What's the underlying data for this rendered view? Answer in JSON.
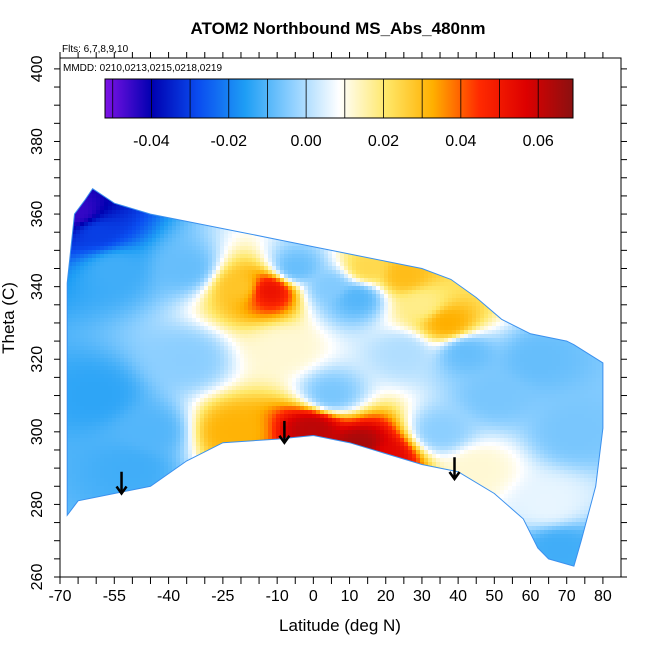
{
  "chart_data": {
    "type": "heatmap",
    "title": "ATOM2 Northbound MS_Abs_480nm",
    "subtitle_flights": "Flts: 6,7,8,9,10",
    "subtitle_dates": "MMDD: 0210,0213,0215,0218,0219",
    "xlabel": "Latitude (deg N)",
    "ylabel": "Theta (C)",
    "xlim": [
      -70,
      85
    ],
    "ylim": [
      260,
      403
    ],
    "x_ticks": [
      -70,
      -55,
      -40,
      -25,
      -10,
      0,
      10,
      20,
      30,
      40,
      50,
      60,
      70,
      80
    ],
    "y_ticks": [
      260,
      280,
      300,
      320,
      340,
      360,
      380,
      400
    ],
    "colorbar": {
      "range": [
        -0.052,
        0.069
      ],
      "ticks": [
        "-0.04",
        "-0.02",
        "0.00",
        "0.02",
        "0.04",
        "0.06"
      ],
      "tick_values": [
        -0.04,
        -0.02,
        0.0,
        0.02,
        0.04,
        0.06
      ],
      "colors": [
        "#7e12e6",
        "#0000b0",
        "#0a4df0",
        "#1e9ef5",
        "#8fd0ff",
        "#ffffff",
        "#ffe86a",
        "#ffb000",
        "#ff2a00",
        "#dd0000",
        "#8b1010"
      ]
    },
    "domain_boundary": {
      "top": [
        [
          -68,
          341
        ],
        [
          -66,
          360
        ],
        [
          -63,
          364
        ],
        [
          -61,
          367
        ],
        [
          -55,
          363
        ],
        [
          -45,
          360
        ],
        [
          -30,
          357
        ],
        [
          -20,
          355
        ],
        [
          -10,
          353
        ],
        [
          0,
          351
        ],
        [
          10,
          349
        ],
        [
          20,
          347
        ],
        [
          30,
          345
        ],
        [
          38,
          342
        ],
        [
          45,
          337
        ],
        [
          52,
          331
        ],
        [
          60,
          327
        ],
        [
          70,
          325
        ],
        [
          72,
          324
        ],
        [
          80,
          319
        ],
        [
          80,
          301
        ]
      ],
      "bottom": [
        [
          -68,
          277
        ],
        [
          -65,
          281
        ],
        [
          -55,
          283
        ],
        [
          -45,
          285
        ],
        [
          -35,
          292
        ],
        [
          -25,
          297
        ],
        [
          -10,
          298
        ],
        [
          0,
          299
        ],
        [
          10,
          297
        ],
        [
          20,
          294
        ],
        [
          30,
          291
        ],
        [
          40,
          289
        ],
        [
          50,
          283
        ],
        [
          58,
          276
        ],
        [
          62,
          268
        ],
        [
          65,
          265
        ],
        [
          72,
          263
        ],
        [
          74,
          270
        ],
        [
          78,
          285
        ],
        [
          80,
          301
        ]
      ]
    },
    "features": [
      {
        "lat": -65,
        "theta": 360,
        "value": -0.045
      },
      {
        "lat": -60,
        "theta": 355,
        "value": -0.03
      },
      {
        "lat": -55,
        "theta": 345,
        "value": -0.012
      },
      {
        "lat": -60,
        "theta": 310,
        "value": -0.014
      },
      {
        "lat": -50,
        "theta": 290,
        "value": -0.012
      },
      {
        "lat": -35,
        "theta": 320,
        "value": -0.004
      },
      {
        "lat": -35,
        "theta": 345,
        "value": -0.008
      },
      {
        "lat": -20,
        "theta": 340,
        "value": 0.028
      },
      {
        "lat": -12,
        "theta": 339,
        "value": 0.052
      },
      {
        "lat": -8,
        "theta": 323,
        "value": 0.012
      },
      {
        "lat": -5,
        "theta": 345,
        "value": -0.008
      },
      {
        "lat": 5,
        "theta": 340,
        "value": -0.005
      },
      {
        "lat": 12,
        "theta": 337,
        "value": -0.01
      },
      {
        "lat": 15,
        "theta": 345,
        "value": 0.024
      },
      {
        "lat": 25,
        "theta": 343,
        "value": 0.03
      },
      {
        "lat": 30,
        "theta": 335,
        "value": 0.018
      },
      {
        "lat": 37,
        "theta": 330,
        "value": 0.033
      },
      {
        "lat": 42,
        "theta": 322,
        "value": -0.008
      },
      {
        "lat": 25,
        "theta": 322,
        "value": 0.0
      },
      {
        "lat": 35,
        "theta": 300,
        "value": -0.004
      },
      {
        "lat": 50,
        "theta": 310,
        "value": -0.006
      },
      {
        "lat": 62,
        "theta": 320,
        "value": -0.008
      },
      {
        "lat": 72,
        "theta": 300,
        "value": -0.006
      },
      {
        "lat": 65,
        "theta": 280,
        "value": 0.006
      },
      {
        "lat": 68,
        "theta": 268,
        "value": -0.012
      },
      {
        "lat": 45,
        "theta": 290,
        "value": 0.012
      },
      {
        "lat": -22,
        "theta": 300,
        "value": 0.032
      },
      {
        "lat": 0,
        "theta": 301,
        "value": 0.062
      },
      {
        "lat": 13,
        "theta": 296,
        "value": 0.065
      },
      {
        "lat": 20,
        "theta": 293,
        "value": 0.055
      },
      {
        "lat": 5,
        "theta": 310,
        "value": -0.006
      },
      {
        "lat": -45,
        "theta": 300,
        "value": -0.01
      }
    ],
    "arrows": [
      {
        "lat": -53,
        "theta_top": 289,
        "theta_tip": 283
      },
      {
        "lat": -8,
        "theta_top": 303,
        "theta_tip": 297
      },
      {
        "lat": 39,
        "theta_top": 293,
        "theta_tip": 287
      }
    ]
  }
}
